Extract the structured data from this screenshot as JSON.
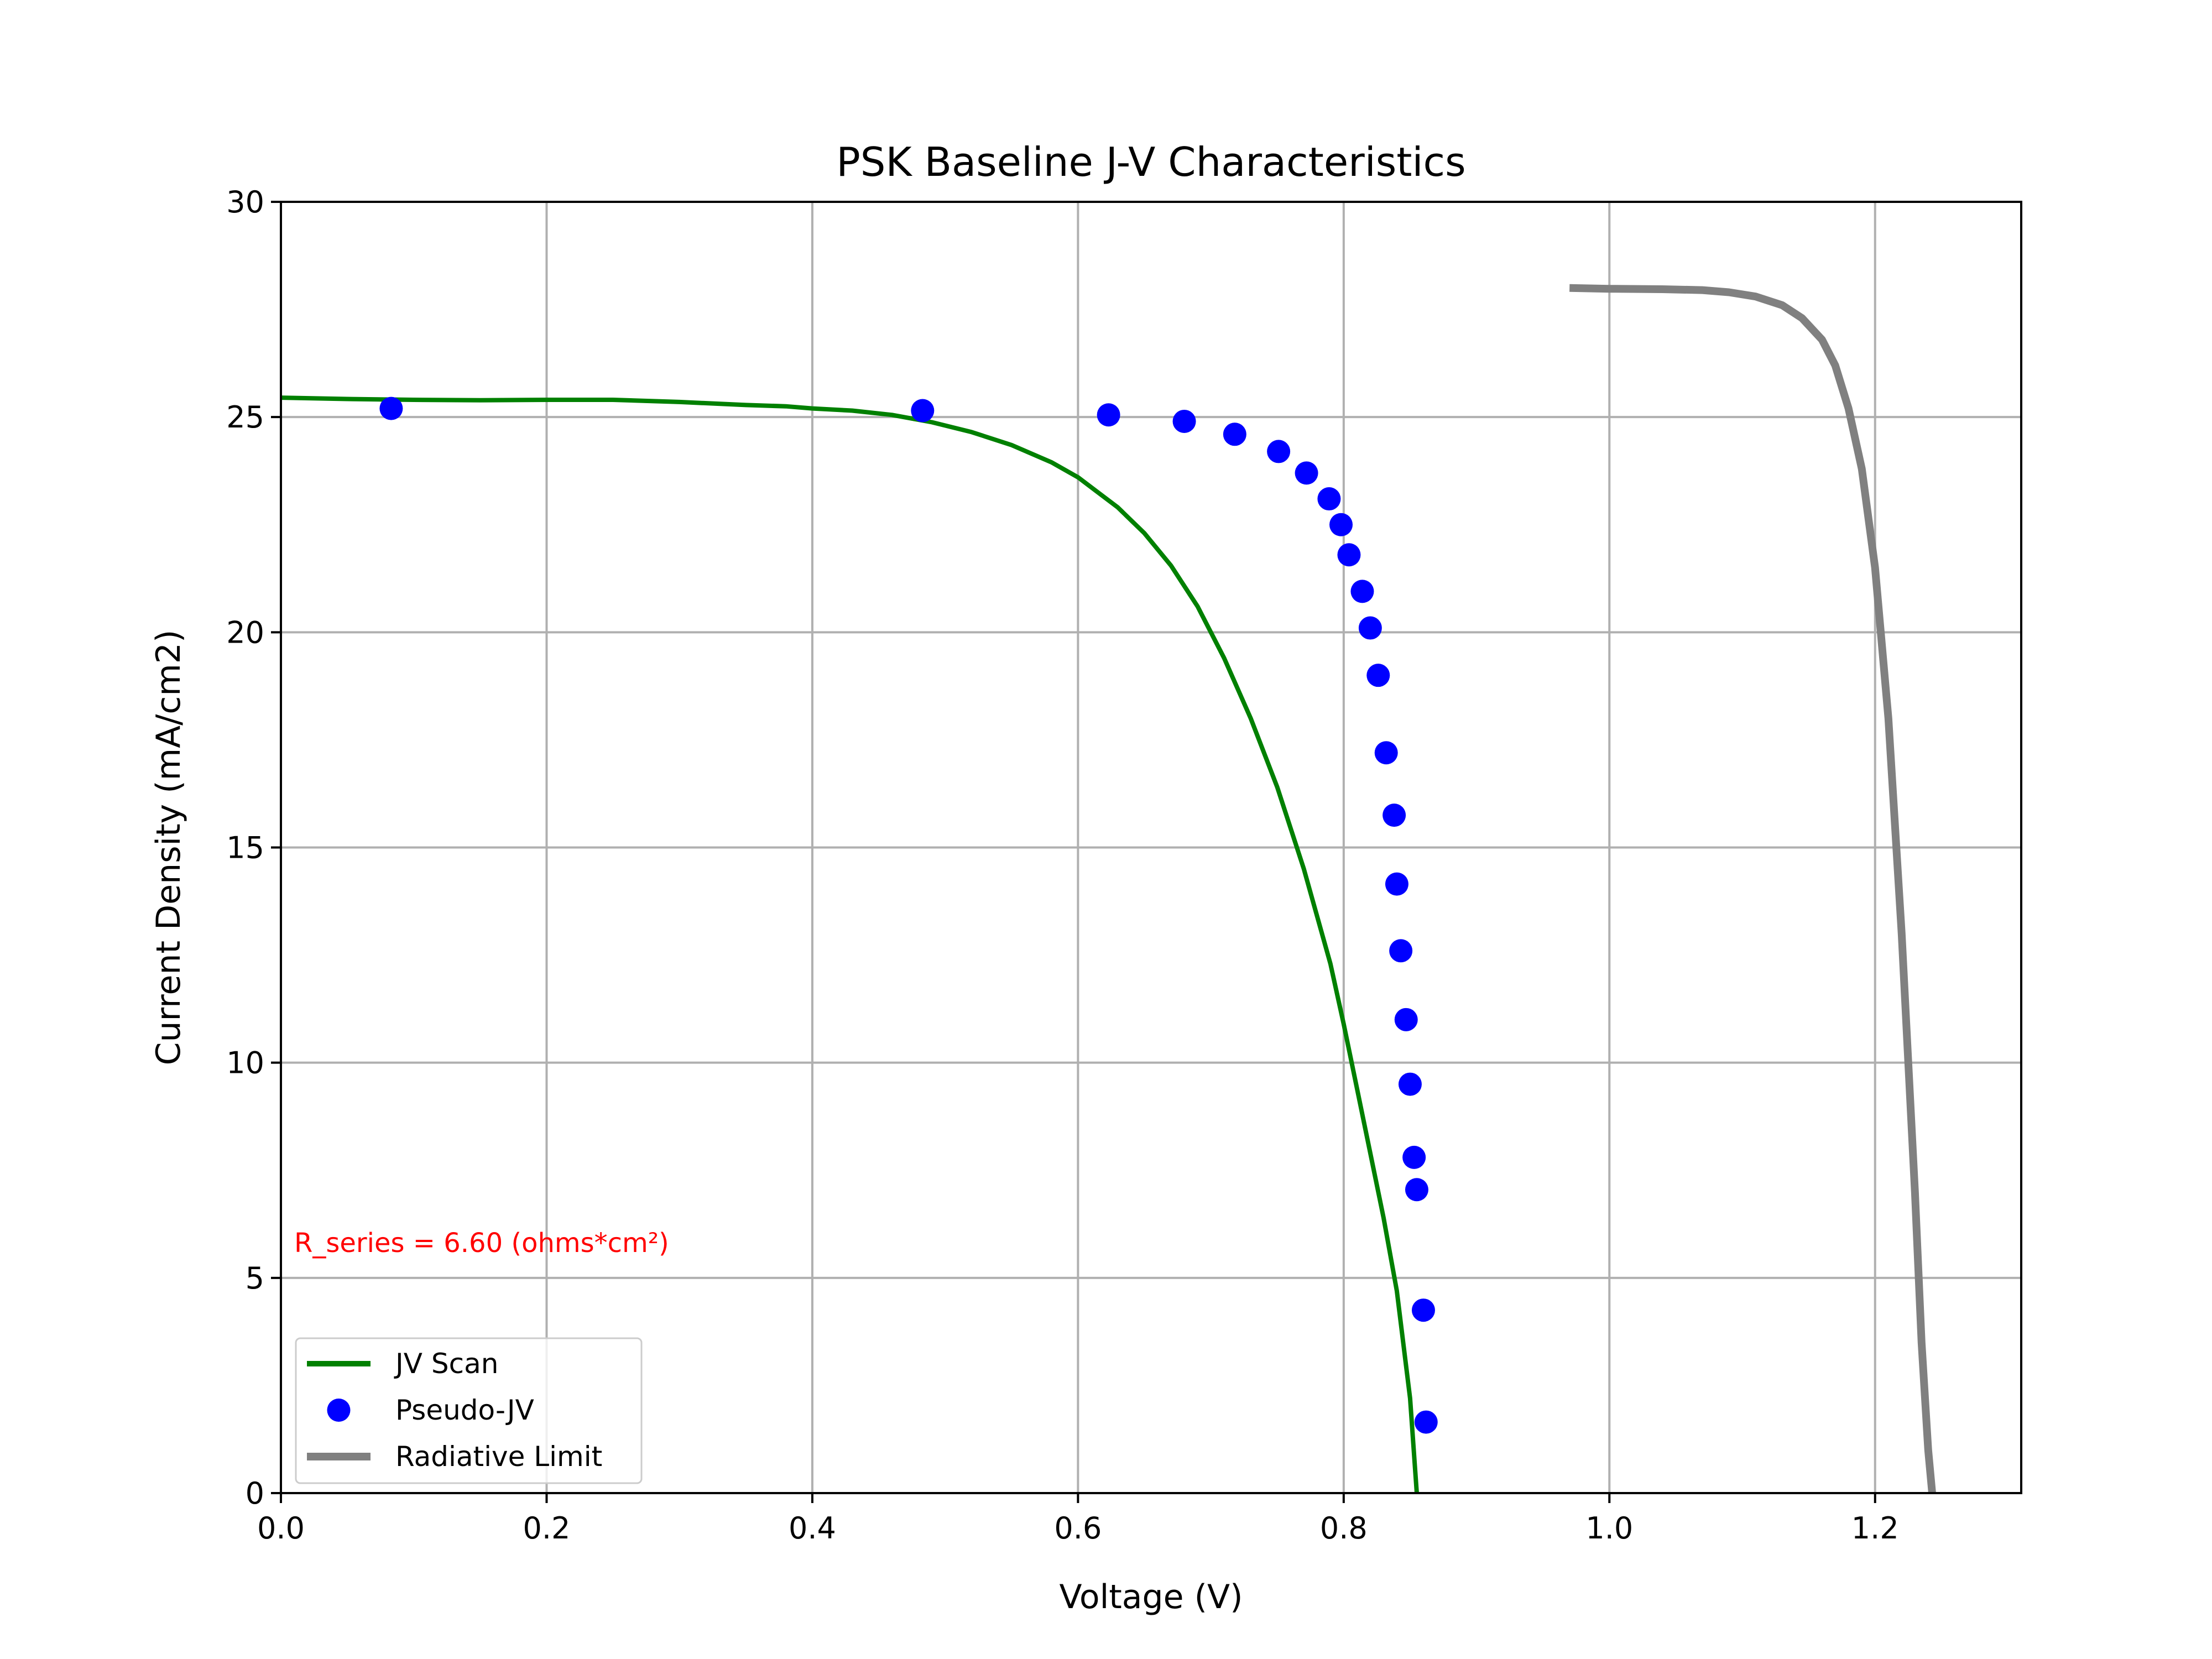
{
  "chart_data": {
    "type": "line",
    "title": "PSK Baseline J-V Characteristics",
    "xlabel": "Voltage (V)",
    "ylabel": "Current Density (mA/cm2)",
    "xlim": [
      0.0,
      1.31
    ],
    "ylim": [
      0,
      30
    ],
    "xticks": [
      0.0,
      0.2,
      0.4,
      0.6,
      0.8,
      1.0,
      1.2
    ],
    "xtick_labels": [
      "0.0",
      "0.2",
      "0.4",
      "0.6",
      "0.8",
      "1.0",
      "1.2"
    ],
    "yticks": [
      0,
      5,
      10,
      15,
      20,
      25,
      30
    ],
    "ytick_labels": [
      "0",
      "5",
      "10",
      "15",
      "20",
      "25",
      "30"
    ],
    "grid": true,
    "legend_position": "lower-left",
    "annotation": {
      "text": "R_series = 6.60 (ohms*cm²)",
      "x": 0.01,
      "y": 5.6,
      "color": "#ff0000"
    },
    "series": [
      {
        "name": "JV Scan",
        "kind": "line",
        "color": "#008000",
        "x": [
          0.0,
          0.05,
          0.1,
          0.15,
          0.2,
          0.25,
          0.3,
          0.35,
          0.38,
          0.4,
          0.43,
          0.46,
          0.49,
          0.52,
          0.55,
          0.58,
          0.6,
          0.63,
          0.65,
          0.67,
          0.69,
          0.71,
          0.73,
          0.75,
          0.77,
          0.79,
          0.8,
          0.81,
          0.82,
          0.83,
          0.84,
          0.85,
          0.855
        ],
        "y": [
          25.45,
          25.42,
          25.4,
          25.39,
          25.4,
          25.4,
          25.35,
          25.28,
          25.25,
          25.2,
          25.15,
          25.05,
          24.88,
          24.65,
          24.35,
          23.95,
          23.6,
          22.9,
          22.3,
          21.55,
          20.6,
          19.4,
          18.0,
          16.4,
          14.5,
          12.3,
          10.9,
          9.4,
          7.9,
          6.4,
          4.7,
          2.2,
          0.0
        ]
      },
      {
        "name": "Pseudo-JV",
        "kind": "scatter",
        "color": "#0000ff",
        "x": [
          0.083,
          0.483,
          0.623,
          0.68,
          0.718,
          0.751,
          0.772,
          0.789,
          0.798,
          0.804,
          0.814,
          0.82,
          0.826,
          0.832,
          0.838,
          0.84,
          0.843,
          0.847,
          0.85,
          0.853,
          0.855,
          0.86,
          0.862
        ],
        "y": [
          25.2,
          25.15,
          25.05,
          24.9,
          24.6,
          24.2,
          23.7,
          23.1,
          22.5,
          21.8,
          20.95,
          20.1,
          19.0,
          17.2,
          15.75,
          14.15,
          12.6,
          11.0,
          9.5,
          7.8,
          7.05,
          4.25,
          1.65
        ]
      },
      {
        "name": "Radiative Limit",
        "kind": "line",
        "color": "#808080",
        "x": [
          0.97,
          1.0,
          1.04,
          1.07,
          1.09,
          1.11,
          1.13,
          1.145,
          1.16,
          1.17,
          1.18,
          1.19,
          1.2,
          1.21,
          1.22,
          1.23,
          1.235,
          1.24,
          1.243
        ],
        "y": [
          28.0,
          27.98,
          27.97,
          27.95,
          27.9,
          27.8,
          27.6,
          27.3,
          26.8,
          26.2,
          25.2,
          23.8,
          21.5,
          18.0,
          13.0,
          7.0,
          3.5,
          1.0,
          0.0
        ]
      }
    ]
  }
}
